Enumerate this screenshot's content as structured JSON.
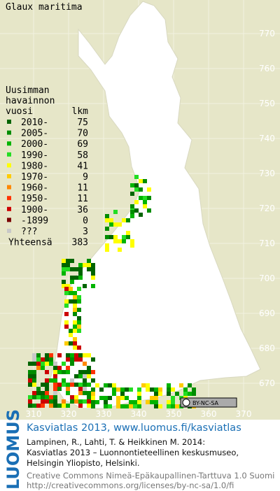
{
  "header": {
    "title": "Glaux maritima"
  },
  "legend": {
    "heading": [
      "Uusimman",
      "havainnon",
      "vuosi"
    ],
    "count_heading": "lkm",
    "rows": [
      {
        "label": "2010-",
        "count": 75,
        "color": "#006400"
      },
      {
        "label": "2005-",
        "count": 70,
        "color": "#008c00"
      },
      {
        "label": "2000-",
        "count": 69,
        "color": "#00b400"
      },
      {
        "label": "1990-",
        "count": 58,
        "color": "#22dd22"
      },
      {
        "label": "1980-",
        "count": 41,
        "color": "#ffff00"
      },
      {
        "label": "1970-",
        "count": 9,
        "color": "#ffcc00"
      },
      {
        "label": "1960-",
        "count": 11,
        "color": "#ff8800"
      },
      {
        "label": "1950-",
        "count": 11,
        "color": "#ff3300"
      },
      {
        "label": "1900-",
        "count": 36,
        "color": "#cc0000"
      },
      {
        "label": "-1899",
        "count": 0,
        "color": "#7a0000"
      },
      {
        "label": "???",
        "count": 3,
        "color": "#c8c8c8"
      }
    ],
    "total_label": "Yhteensä",
    "total": 383
  },
  "grid": {
    "north": [
      770,
      760,
      750,
      740,
      730,
      720,
      710,
      700,
      690,
      680,
      670
    ],
    "east": [
      310,
      320,
      330,
      340,
      350,
      360,
      370
    ]
  },
  "license_badge": "BY-NC-SA",
  "footer": {
    "logo": "LUOMUS",
    "headline": "Kasviatlas 2013, www.luomus.fi/kasviatlas",
    "citation": [
      "Lampinen, R., Lahti, T. & Heikkinen M. 2014:",
      "Kasviatlas 2013 – Luonnontieteellinen keskusmuseo,",
      "Helsingin Yliopisto, Helsinki."
    ],
    "license": [
      "Creative Commons Nimeä-Epäkaupallinen-Tarttuva 1.0 Suomi",
      "http://creativecommons.org/licenses/by-nc-sa/1.0/fi"
    ]
  }
}
